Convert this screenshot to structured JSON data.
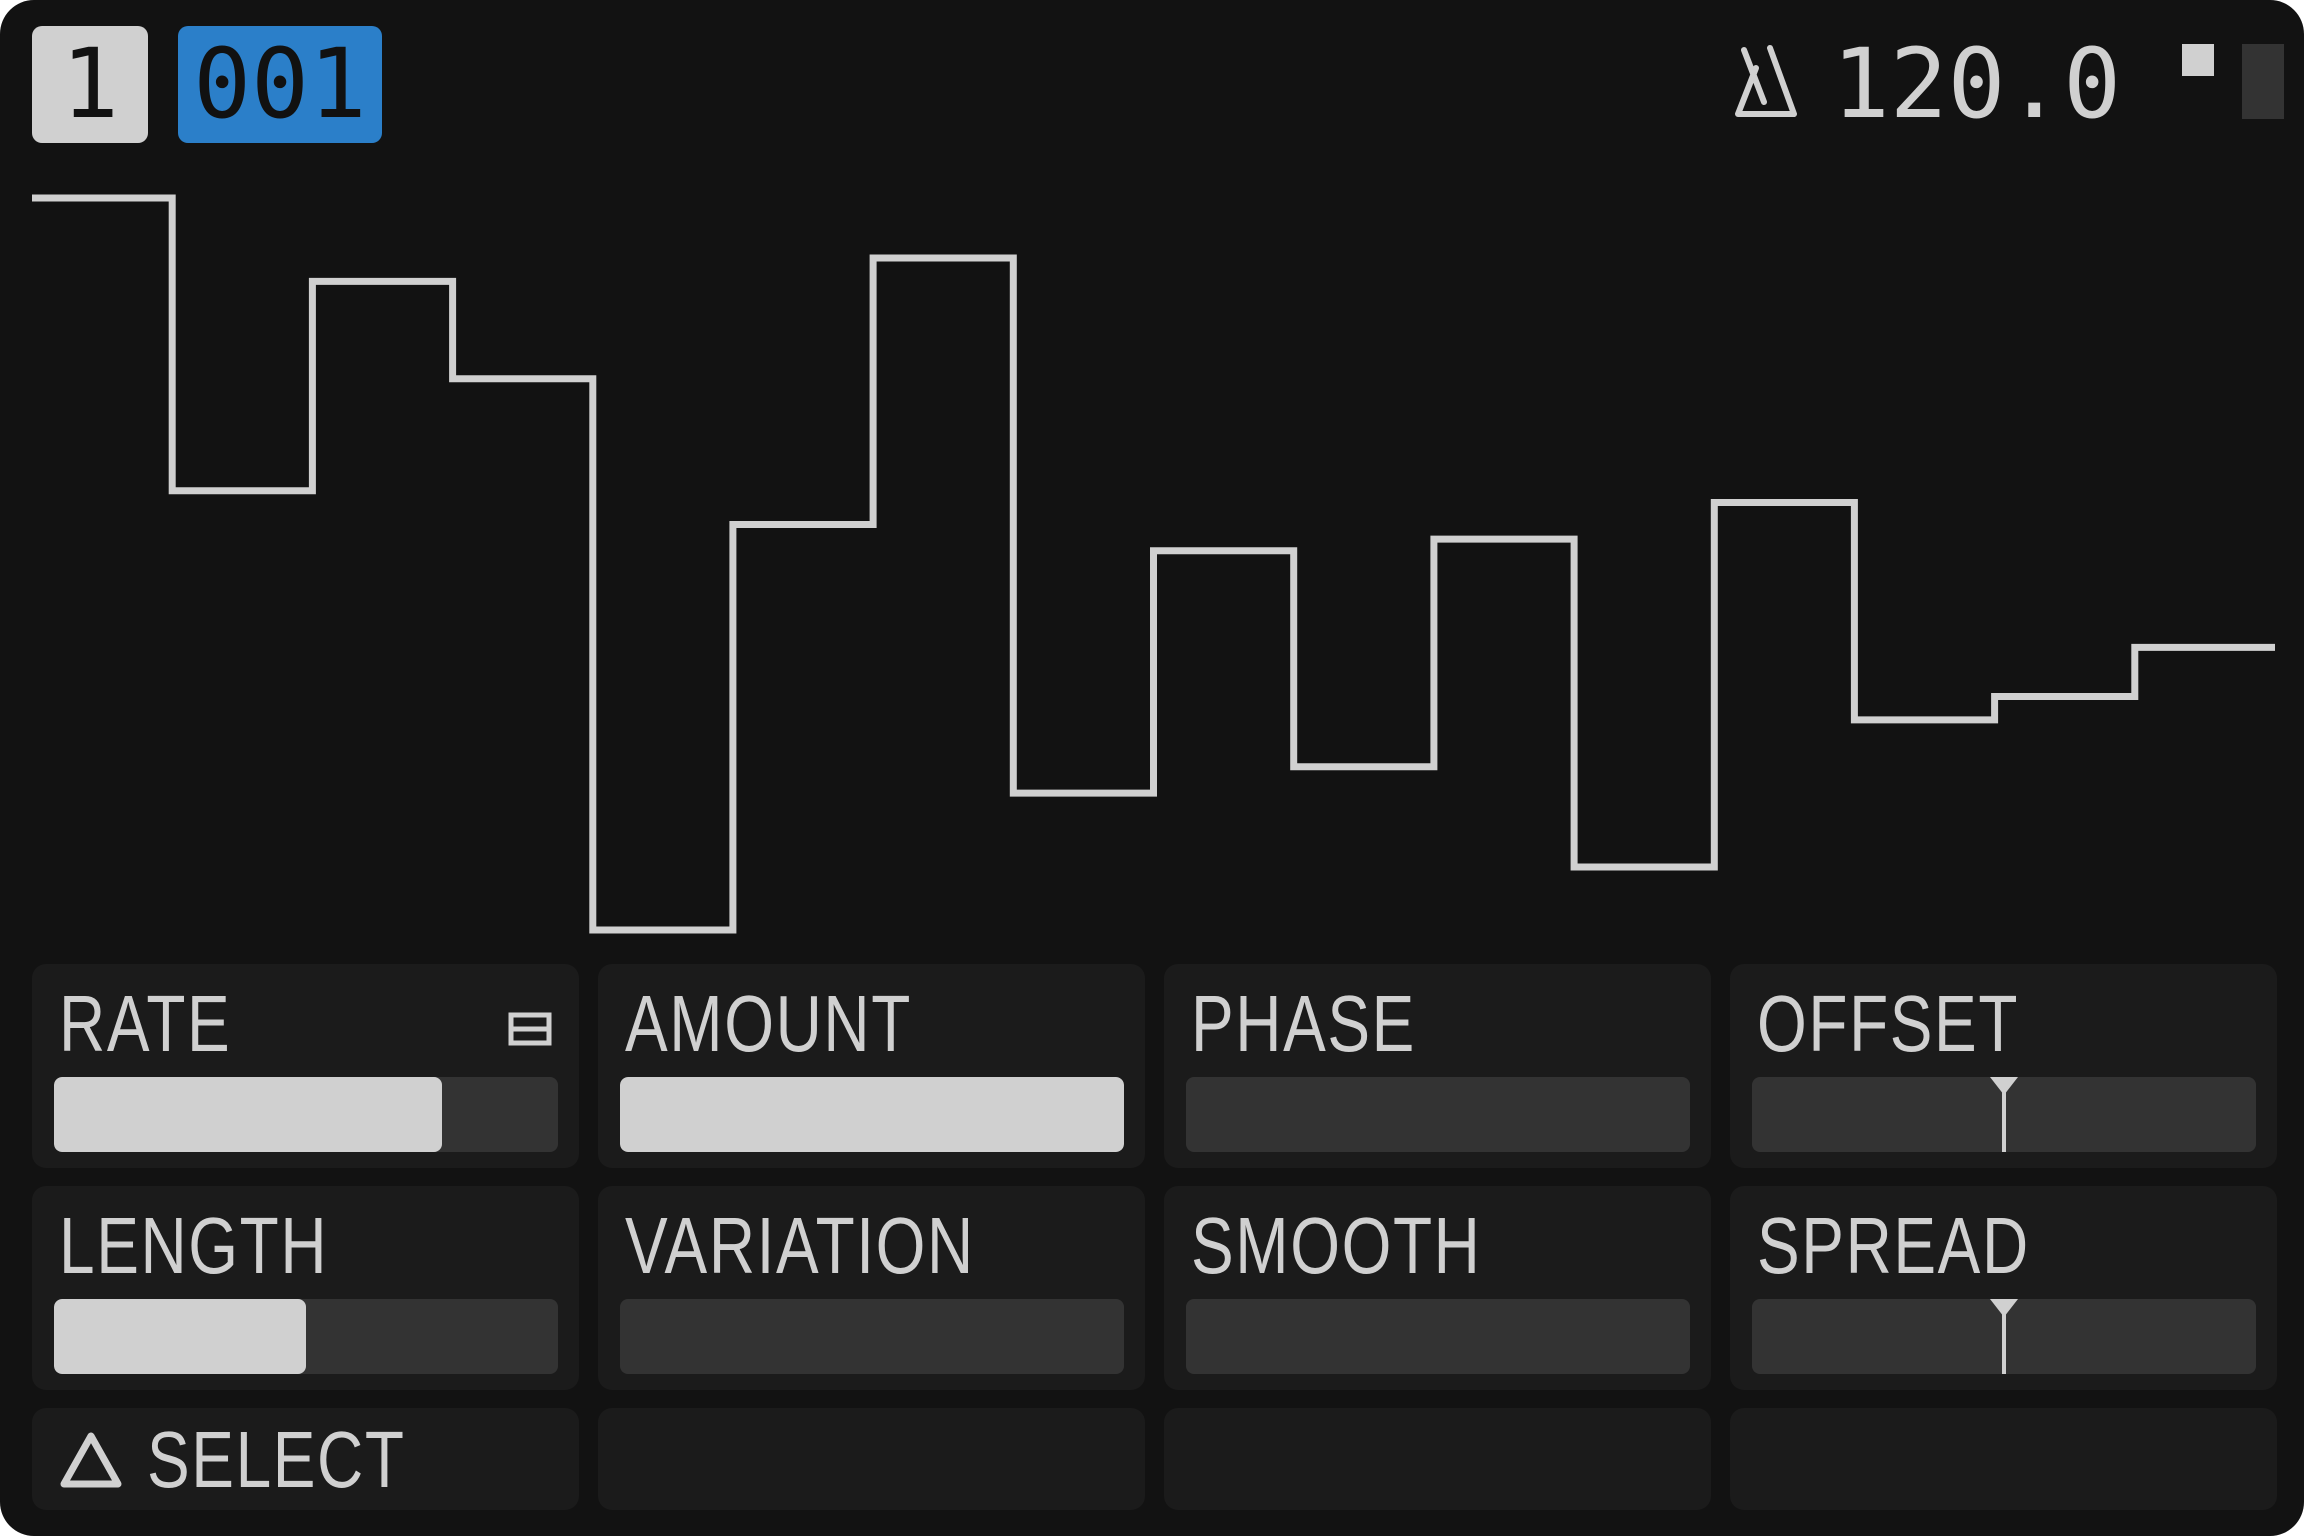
{
  "header": {
    "track": "1",
    "pattern": "001",
    "tempo": "120.0",
    "tempo_icon": "metronome-icon",
    "pattern_color": "#2b7fc9"
  },
  "waveform": {
    "type": "step",
    "values": [
      1.0,
      0.6,
      0.886,
      0.753,
      0.0,
      0.554,
      0.918,
      0.187,
      0.518,
      0.223,
      0.534,
      0.086,
      0.584,
      0.287,
      0.319,
      0.386
    ]
  },
  "params": [
    {
      "label": "RATE",
      "kind": "unipolar",
      "value": 0.77,
      "icon": "sync-icon"
    },
    {
      "label": "AMOUNT",
      "kind": "unipolar",
      "value": 1.0
    },
    {
      "label": "PHASE",
      "kind": "unipolar",
      "value": 0.0
    },
    {
      "label": "OFFSET",
      "kind": "bipolar",
      "value": 0.0
    },
    {
      "label": "LENGTH",
      "kind": "unipolar",
      "value": 0.5
    },
    {
      "label": "VARIATION",
      "kind": "unipolar",
      "value": 0.0
    },
    {
      "label": "SMOOTH",
      "kind": "unipolar",
      "value": 0.0
    },
    {
      "label": "SPREAD",
      "kind": "bipolar",
      "value": 0.0
    }
  ],
  "footer": {
    "select_label": "SELECT",
    "select_icon": "triangle-icon"
  }
}
